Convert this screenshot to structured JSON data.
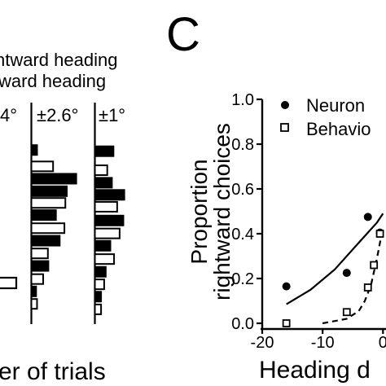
{
  "panel_letter": "C",
  "legend_left": {
    "line1": "ntward heading",
    "line2": "ward heading"
  },
  "histogram_labels": [
    "4°",
    "±2.6°",
    "±1°"
  ],
  "left_xlabel": "er of trials",
  "chart_data": [
    {
      "type": "bar",
      "orientation": "horizontal",
      "title": "±2.6°",
      "bars_norm": [
        {
          "y": 0.862,
          "value": 0.12,
          "fill": "black"
        },
        {
          "y": 0.781,
          "value": 0.46,
          "fill": "white"
        },
        {
          "y": 0.72,
          "value": 0.95,
          "fill": "black"
        },
        {
          "y": 0.658,
          "value": 0.75,
          "fill": "black"
        },
        {
          "y": 0.6,
          "value": 0.72,
          "fill": "white"
        },
        {
          "y": 0.54,
          "value": 0.52,
          "fill": "black"
        },
        {
          "y": 0.475,
          "value": 0.7,
          "fill": "white"
        },
        {
          "y": 0.413,
          "value": 0.6,
          "fill": "black"
        },
        {
          "y": 0.35,
          "value": 0.35,
          "fill": "white"
        },
        {
          "y": 0.288,
          "value": 0.36,
          "fill": "black"
        },
        {
          "y": 0.223,
          "value": 0.25,
          "fill": "white"
        },
        {
          "y": 0.162,
          "value": 0.1,
          "fill": "black"
        },
        {
          "y": 0.1,
          "value": 0.12,
          "fill": "white"
        }
      ]
    },
    {
      "type": "bar",
      "orientation": "horizontal",
      "title": "±1°",
      "bars_norm": [
        {
          "y": 0.856,
          "value": 0.6,
          "fill": "black"
        },
        {
          "y": 0.762,
          "value": 0.4,
          "fill": "white"
        },
        {
          "y": 0.7,
          "value": 0.55,
          "fill": "black"
        },
        {
          "y": 0.64,
          "value": 0.95,
          "fill": "black"
        },
        {
          "y": 0.581,
          "value": 0.72,
          "fill": "white"
        },
        {
          "y": 0.513,
          "value": 0.92,
          "fill": "black"
        },
        {
          "y": 0.449,
          "value": 0.8,
          "fill": "white"
        },
        {
          "y": 0.388,
          "value": 0.5,
          "fill": "black"
        },
        {
          "y": 0.322,
          "value": 0.62,
          "fill": "white"
        },
        {
          "y": 0.259,
          "value": 0.35,
          "fill": "black"
        },
        {
          "y": 0.197,
          "value": 0.3,
          "fill": "white"
        },
        {
          "y": 0.136,
          "value": 0.2,
          "fill": "black"
        },
        {
          "y": 0.073,
          "value": 0.2,
          "fill": "white"
        }
      ]
    },
    {
      "type": "scatter",
      "title": "",
      "xlabel": "Heading d",
      "ylabel_line1": "Proportion",
      "ylabel_line2": "rightward choices",
      "xlim": [
        -20,
        0.5
      ],
      "ylim": [
        0,
        1.0
      ],
      "xticks": [
        -20,
        -10,
        0
      ],
      "xtick_labels": [
        "-20",
        "-10",
        "0"
      ],
      "yticks": [
        0.0,
        0.2,
        0.4,
        0.6,
        0.8,
        1.0
      ],
      "ytick_labels": [
        "0.0",
        "0.2",
        "0.4",
        "0.6",
        "0.8",
        "1.0"
      ],
      "legend": [
        {
          "label": "Neuron",
          "marker": "filled-circle"
        },
        {
          "label": "Behavio",
          "marker": "open-square"
        }
      ],
      "series": [
        {
          "name": "Neuron",
          "marker": "filled-circle",
          "points": [
            [
              -16,
              0.165
            ],
            [
              -6,
              0.225
            ],
            [
              -2.5,
              0.475
            ],
            [
              -0.5,
              0.405
            ]
          ]
        },
        {
          "name": "Behavio",
          "marker": "open-square",
          "points": [
            [
              -16,
              0.0
            ],
            [
              -6,
              0.05
            ],
            [
              -2.5,
              0.16
            ],
            [
              -1.5,
              0.26
            ],
            [
              -0.5,
              0.4
            ]
          ]
        },
        {
          "name": "Neuron fit",
          "style": "solid",
          "points": [
            [
              -16,
              0.085
            ],
            [
              -12,
              0.15
            ],
            [
              -8,
              0.24
            ],
            [
              -4,
              0.36
            ],
            [
              -1,
              0.45
            ],
            [
              0,
              0.49
            ]
          ]
        },
        {
          "name": "Behavior fit",
          "style": "dashed",
          "points": [
            [
              -10,
              0.0
            ],
            [
              -6,
              0.02
            ],
            [
              -4,
              0.055
            ],
            [
              -3,
              0.1
            ],
            [
              -2,
              0.17
            ],
            [
              -1,
              0.29
            ],
            [
              0,
              0.43
            ]
          ]
        }
      ]
    }
  ]
}
